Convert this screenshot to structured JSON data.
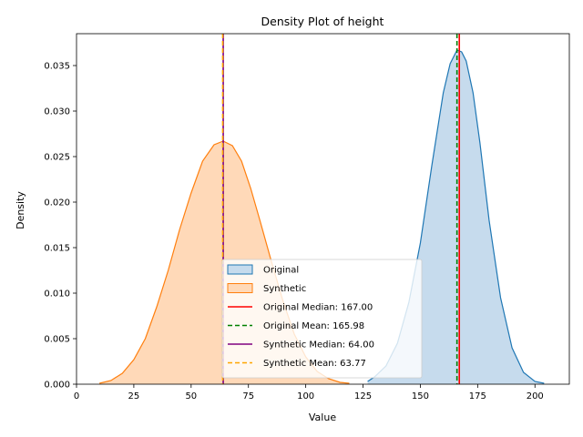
{
  "chart_data": {
    "type": "area",
    "title": "Density Plot of height",
    "xlabel": "Value",
    "ylabel": "Density",
    "xlim": [
      0,
      215
    ],
    "ylim": [
      0,
      0.0385
    ],
    "xticks": [
      0,
      25,
      50,
      75,
      100,
      125,
      150,
      175,
      200
    ],
    "yticks": [
      0.0,
      0.005,
      0.01,
      0.015,
      0.02,
      0.025,
      0.03,
      0.035
    ],
    "xtick_labels": [
      "0",
      "25",
      "50",
      "75",
      "100",
      "125",
      "150",
      "175",
      "200"
    ],
    "ytick_labels": [
      "0.000",
      "0.005",
      "0.010",
      "0.015",
      "0.020",
      "0.025",
      "0.030",
      "0.035"
    ],
    "grid": false,
    "legend_position": "lower-center",
    "series": [
      {
        "name": "Original",
        "color": "#1f77b4",
        "fill": "#c6dbed",
        "x": [
          127,
          130,
          135,
          140,
          145,
          150,
          155,
          160,
          163,
          166,
          168,
          170,
          173,
          176,
          180,
          185,
          190,
          195,
          200,
          204
        ],
        "y": [
          0.0003,
          0.0008,
          0.002,
          0.0045,
          0.009,
          0.0155,
          0.024,
          0.032,
          0.0352,
          0.0367,
          0.0365,
          0.0355,
          0.032,
          0.0265,
          0.018,
          0.0095,
          0.004,
          0.0013,
          0.0003,
          0.0001
        ]
      },
      {
        "name": "Synthetic",
        "color": "#ff7f0e",
        "fill": "#ffd9b8",
        "x": [
          10,
          15,
          20,
          25,
          30,
          35,
          40,
          45,
          50,
          55,
          60,
          64,
          68,
          72,
          76,
          80,
          85,
          90,
          95,
          100,
          105,
          110,
          115,
          119
        ],
        "y": [
          0.0001,
          0.0004,
          0.0012,
          0.0027,
          0.005,
          0.0085,
          0.0125,
          0.017,
          0.021,
          0.0245,
          0.0263,
          0.0267,
          0.0262,
          0.0245,
          0.0215,
          0.018,
          0.0135,
          0.0092,
          0.0055,
          0.003,
          0.0014,
          0.0006,
          0.0002,
          0.0001
        ]
      }
    ],
    "reference_lines": [
      {
        "name": "Original Median: 167.00",
        "x": 167.0,
        "color": "#ff0000",
        "style": "solid"
      },
      {
        "name": "Original Mean: 165.98",
        "x": 165.98,
        "color": "#008000",
        "style": "dashed"
      },
      {
        "name": "Synthetic Median: 64.00",
        "x": 64.0,
        "color": "#800080",
        "style": "solid"
      },
      {
        "name": "Synthetic Mean: 63.77",
        "x": 63.77,
        "color": "#ffa500",
        "style": "dashed"
      }
    ]
  }
}
